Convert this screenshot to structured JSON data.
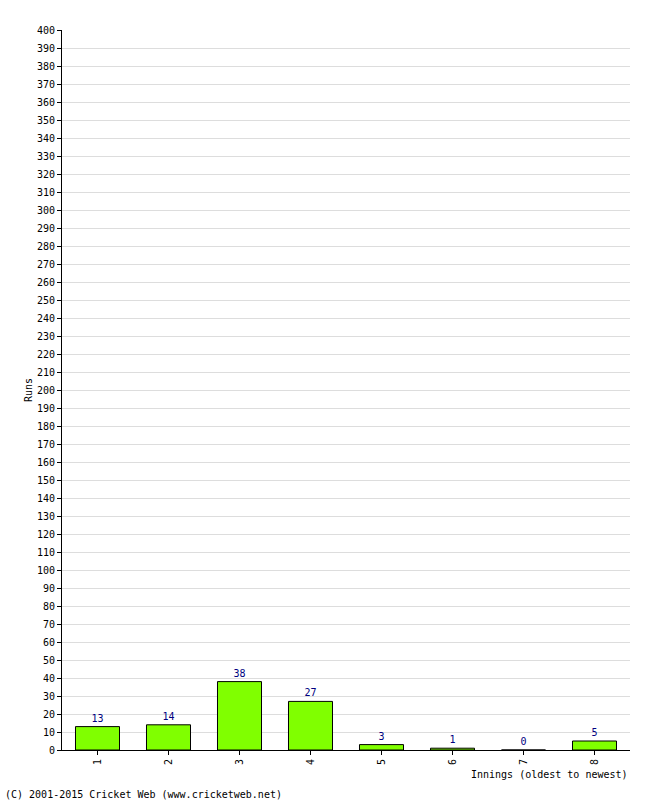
{
  "chart_data": {
    "type": "bar",
    "categories": [
      "1",
      "2",
      "3",
      "4",
      "5",
      "6",
      "7",
      "8"
    ],
    "values": [
      13,
      14,
      38,
      27,
      3,
      1,
      0,
      5
    ],
    "color": "#80ff00",
    "x_label": "Innings (oldest to newest)",
    "y_label": "Runs",
    "annotations": [
      "(C) 2001-2015 Cricket Web (www.cricketweb.net)"
    ],
    "ylim": [
      0,
      400
    ],
    "yticks": [
      0,
      10,
      20,
      30,
      40,
      50,
      60,
      70,
      80,
      90,
      100,
      110,
      120,
      130,
      140,
      150,
      160,
      170,
      180,
      190,
      200,
      210,
      220,
      230,
      240,
      250,
      260,
      270,
      280,
      290,
      300,
      310,
      320,
      330,
      340,
      350,
      360,
      370,
      380,
      390,
      400
    ],
    "grid": true,
    "data_labels": true
  }
}
